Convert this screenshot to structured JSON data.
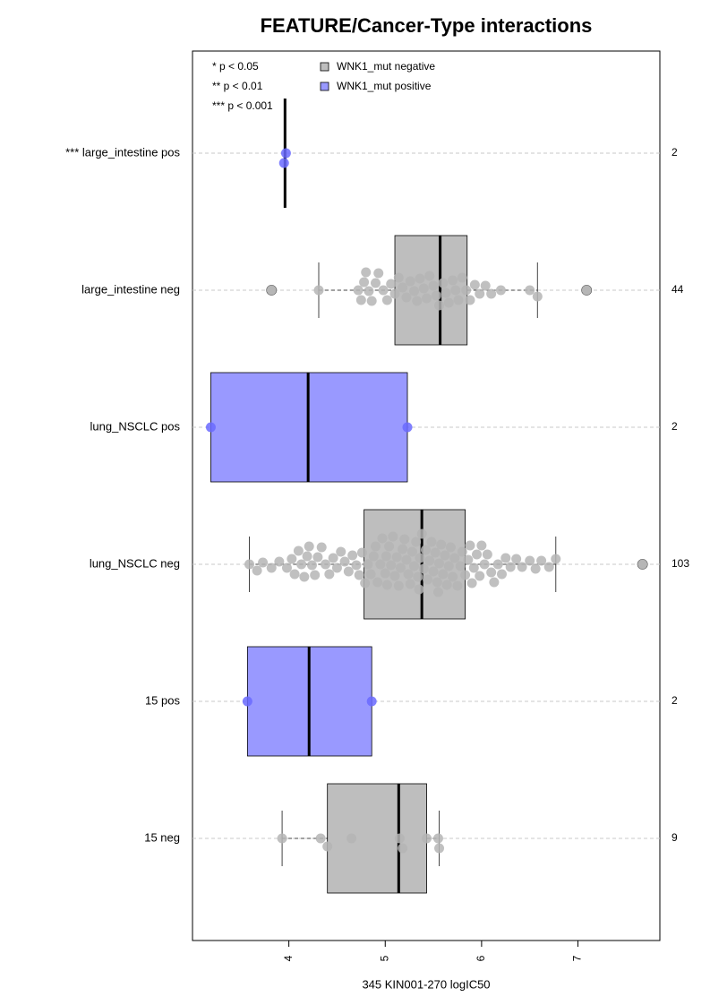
{
  "chart_data": {
    "type": "boxplot",
    "title": "FEATURE/Cancer-Type interactions",
    "xlabel": "345 KIN001-270 logIC50",
    "xlim": [
      3.0,
      7.85
    ],
    "xticks": [
      4,
      5,
      6,
      7
    ],
    "notes": [
      "* p < 0.05",
      "** p < 0.01",
      "*** p < 0.001"
    ],
    "legend": [
      {
        "name": "WNK1_mut negative",
        "color": "#bebebe"
      },
      {
        "name": "WNK1_mut positive",
        "color": "#9999ff"
      }
    ],
    "categories": [
      "*** large_intestine pos",
      "large_intestine neg",
      "lung_NSCLC pos",
      "lung_NSCLC neg",
      "15 pos",
      "15 neg"
    ],
    "counts": [
      2,
      44,
      2,
      103,
      2,
      9
    ],
    "boxes": [
      {
        "color": "#9999ff",
        "point_color": "#6a6aff",
        "whisker_low": 3.96,
        "q1": 3.96,
        "median": 3.96,
        "q3": 3.96,
        "whisker_high": 3.96,
        "outliers": [],
        "points": [
          3.97,
          3.95
        ]
      },
      {
        "color": "#bebebe",
        "point_color": "#b5b5b5",
        "whisker_low": 4.31,
        "q1": 5.1,
        "median": 5.57,
        "q3": 5.85,
        "whisker_high": 6.58,
        "outliers": [
          3.82,
          7.09
        ],
        "points": [
          3.82,
          4.31,
          4.72,
          4.75,
          4.78,
          4.8,
          4.83,
          4.86,
          4.9,
          4.93,
          4.98,
          5.02,
          5.06,
          5.1,
          5.14,
          5.18,
          5.22,
          5.26,
          5.3,
          5.33,
          5.36,
          5.4,
          5.43,
          5.46,
          5.5,
          5.53,
          5.56,
          5.6,
          5.63,
          5.66,
          5.7,
          5.73,
          5.76,
          5.8,
          5.84,
          5.88,
          5.93,
          5.98,
          6.04,
          6.1,
          6.2,
          6.5,
          6.58,
          7.09
        ]
      },
      {
        "color": "#9999ff",
        "point_color": "#6a6aff",
        "whisker_low": 3.19,
        "q1": 3.19,
        "median": 4.2,
        "q3": 5.23,
        "whisker_high": 5.23,
        "outliers": [],
        "points": [
          3.19,
          5.23
        ]
      },
      {
        "color": "#bebebe",
        "point_color": "#b5b5b5",
        "whisker_low": 3.59,
        "q1": 4.78,
        "median": 5.38,
        "q3": 5.83,
        "whisker_high": 6.77,
        "outliers": [
          7.67
        ],
        "points": [
          3.59,
          3.67,
          3.73,
          3.82,
          3.9,
          3.98,
          4.03,
          4.06,
          4.1,
          4.13,
          4.16,
          4.19,
          4.21,
          4.24,
          4.27,
          4.3,
          4.34,
          4.38,
          4.42,
          4.46,
          4.5,
          4.54,
          4.58,
          4.62,
          4.66,
          4.7,
          4.73,
          4.76,
          4.79,
          4.82,
          4.85,
          4.88,
          4.9,
          4.92,
          4.95,
          4.97,
          5.0,
          5.01,
          5.02,
          5.04,
          5.06,
          5.08,
          5.1,
          5.12,
          5.14,
          5.16,
          5.18,
          5.2,
          5.22,
          5.24,
          5.26,
          5.28,
          5.3,
          5.32,
          5.34,
          5.35,
          5.36,
          5.38,
          5.4,
          5.42,
          5.44,
          5.46,
          5.48,
          5.5,
          5.52,
          5.54,
          5.55,
          5.56,
          5.58,
          5.6,
          5.62,
          5.64,
          5.66,
          5.68,
          5.7,
          5.72,
          5.75,
          5.78,
          5.8,
          5.83,
          5.86,
          5.88,
          5.9,
          5.92,
          5.95,
          5.98,
          6.0,
          6.03,
          6.06,
          6.1,
          6.13,
          6.17,
          6.21,
          6.25,
          6.3,
          6.36,
          6.42,
          6.5,
          6.56,
          6.62,
          6.7,
          6.77,
          7.67
        ]
      },
      {
        "color": "#9999ff",
        "point_color": "#6a6aff",
        "whisker_low": 3.57,
        "q1": 3.57,
        "median": 4.21,
        "q3": 4.86,
        "whisker_high": 4.86,
        "outliers": [],
        "points": [
          3.57,
          4.86
        ]
      },
      {
        "color": "#bebebe",
        "point_color": "#b5b5b5",
        "whisker_low": 3.93,
        "q1": 4.4,
        "median": 5.14,
        "q3": 5.43,
        "whisker_high": 5.56,
        "outliers": [],
        "points": [
          3.93,
          4.33,
          4.4,
          4.65,
          5.15,
          5.18,
          5.43,
          5.55,
          5.56
        ]
      }
    ]
  }
}
